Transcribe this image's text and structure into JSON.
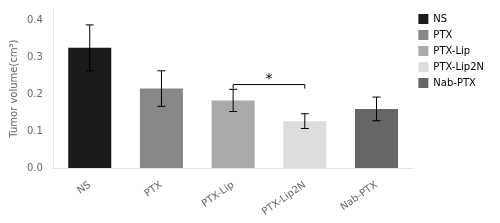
{
  "chart_data": {
    "type": "bar",
    "categories": [
      "NS",
      "PTX",
      "PTX-Lip",
      "PTX-Lip2N",
      "Nab-PTX"
    ],
    "values": [
      0.325,
      0.215,
      0.183,
      0.127,
      0.16
    ],
    "errors": [
      0.062,
      0.048,
      0.03,
      0.02,
      0.032
    ],
    "colors": [
      "#1a1a1a",
      "#888888",
      "#aaaaaa",
      "#dddddd",
      "#666666"
    ],
    "y_label": "Tumor volume(cm³)",
    "ylim": [
      0,
      0.43
    ],
    "yticks": [
      {
        "value": 0.0,
        "label": "0.0"
      },
      {
        "value": 0.1,
        "label": "0.1"
      },
      {
        "value": 0.2,
        "label": "0.2"
      },
      {
        "value": 0.3,
        "label": "0.3"
      },
      {
        "value": 0.4,
        "label": "0.4"
      }
    ],
    "annotations": [
      {
        "text": "*",
        "x1": "PTX-Lip",
        "x2": "PTX-Lip2N",
        "y": 0.215
      }
    ],
    "legend": "upper right",
    "grid": false
  }
}
